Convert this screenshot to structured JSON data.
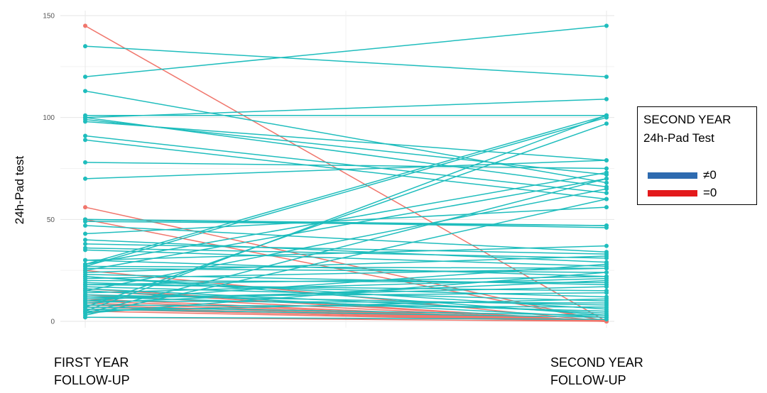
{
  "chart_data": {
    "type": "line",
    "title": "",
    "ylabel": "24h-Pad test",
    "categories": [
      "FIRST YEAR FOLLOW-UP",
      "SECOND  YEAR FOLLOW-UP"
    ],
    "category_lines": [
      [
        "FIRST YEAR",
        "FOLLOW-UP"
      ],
      [
        "SECOND  YEAR",
        "FOLLOW-UP"
      ]
    ],
    "y_ticks": [
      0,
      50,
      100,
      150
    ],
    "ylim": [
      0,
      150
    ],
    "grid": true,
    "legend": {
      "title_lines": [
        "SECOND YEAR",
        "24h-Pad Test"
      ],
      "placement": "right",
      "entries": [
        {
          "label": "≠0",
          "color": "#2e6bb0"
        },
        {
          "label": "=0",
          "color": "#e3191b"
        }
      ]
    },
    "series_colors": {
      "nonzero": "#1fbdbd",
      "zero": "#f0766c"
    },
    "pairs_nonzero": [
      [
        135,
        120
      ],
      [
        120,
        145
      ],
      [
        113,
        68
      ],
      [
        101,
        101
      ],
      [
        100,
        109
      ],
      [
        100,
        66
      ],
      [
        99,
        72
      ],
      [
        98,
        79
      ],
      [
        91,
        63
      ],
      [
        89,
        60
      ],
      [
        78,
        75
      ],
      [
        70,
        79
      ],
      [
        50,
        47
      ],
      [
        50,
        46
      ],
      [
        49,
        47
      ],
      [
        47,
        34
      ],
      [
        43,
        56
      ],
      [
        40,
        29
      ],
      [
        38,
        33
      ],
      [
        36,
        31
      ],
      [
        35,
        27
      ],
      [
        30,
        22
      ],
      [
        30,
        37
      ],
      [
        28,
        101
      ],
      [
        28,
        73
      ],
      [
        27,
        100
      ],
      [
        27,
        26
      ],
      [
        26,
        24
      ],
      [
        25,
        70
      ],
      [
        24,
        32
      ],
      [
        23,
        18
      ],
      [
        22,
        6
      ],
      [
        22,
        3
      ],
      [
        21,
        26
      ],
      [
        20,
        19
      ],
      [
        19,
        12
      ],
      [
        18,
        15
      ],
      [
        18,
        22
      ],
      [
        17,
        10
      ],
      [
        16,
        4
      ],
      [
        15,
        2
      ],
      [
        15,
        65
      ],
      [
        14,
        21
      ],
      [
        13,
        8
      ],
      [
        12,
        14
      ],
      [
        12,
        5
      ],
      [
        11,
        17
      ],
      [
        10,
        28
      ],
      [
        10,
        9
      ],
      [
        9,
        20
      ],
      [
        8,
        7
      ],
      [
        7,
        97
      ],
      [
        7,
        3
      ],
      [
        6,
        2
      ],
      [
        5,
        11
      ],
      [
        5,
        101
      ],
      [
        4,
        24
      ],
      [
        4,
        70
      ],
      [
        3,
        60
      ],
      [
        2,
        1
      ]
    ],
    "pairs_zero": [
      [
        145,
        0
      ],
      [
        56,
        0
      ],
      [
        50,
        0
      ],
      [
        25,
        0
      ],
      [
        16,
        0
      ],
      [
        15,
        0
      ],
      [
        13,
        0
      ],
      [
        11,
        0
      ],
      [
        10,
        0
      ],
      [
        9,
        0
      ],
      [
        8,
        0
      ],
      [
        7,
        0
      ],
      [
        6,
        0
      ],
      [
        5,
        0
      ],
      [
        2,
        0
      ]
    ]
  }
}
